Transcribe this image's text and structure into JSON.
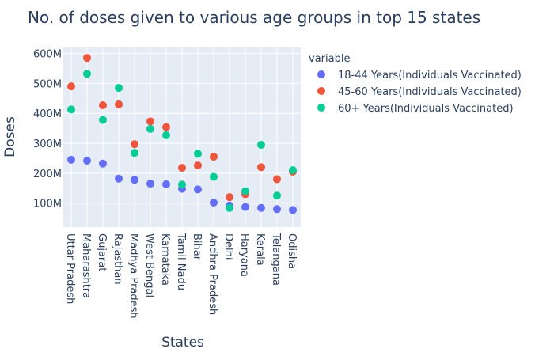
{
  "colors": {
    "plot_bg": "#E5ECF6",
    "grid": "#ffffff",
    "text": "#2a3f5f"
  },
  "chart_data": {
    "type": "scatter",
    "title": "No. of doses given to various age groups in top 15 states",
    "xlabel": "States",
    "ylabel": "Doses",
    "legend_title": "variable",
    "legend_position": "right",
    "grid": true,
    "ylim": [
      20000000,
      620000000
    ],
    "yticks": [
      100000000,
      200000000,
      300000000,
      400000000,
      500000000,
      600000000
    ],
    "ytick_labels": [
      "100M",
      "200M",
      "300M",
      "400M",
      "500M",
      "600M"
    ],
    "categories": [
      "Uttar Pradesh",
      "Maharashtra",
      "Gujarat",
      "Rajasthan",
      "Madhya Pradesh",
      "West Bengal",
      "Karnataka",
      "Tamil Nadu",
      "Bihar",
      "Andhra Pradesh",
      "Delhi",
      "Haryana",
      "Kerala",
      "Telangana",
      "Odisha"
    ],
    "series": [
      {
        "name": "18-44 Years(Individuals Vaccinated)",
        "color": "#636efa",
        "values": [
          245000000,
          242000000,
          232000000,
          182000000,
          178000000,
          165000000,
          163000000,
          148000000,
          146000000,
          102000000,
          92000000,
          87000000,
          84000000,
          80000000,
          77000000
        ]
      },
      {
        "name": "45-60 Years(Individuals Vaccinated)",
        "color": "#EF553B",
        "values": [
          490000000,
          585000000,
          427000000,
          430000000,
          297000000,
          373000000,
          354000000,
          218000000,
          226000000,
          255000000,
          120000000,
          130000000,
          220000000,
          180000000,
          205000000
        ]
      },
      {
        "name": "60+ Years(Individuals Vaccinated)",
        "color": "#00cc96",
        "values": [
          413000000,
          532000000,
          378000000,
          485000000,
          268000000,
          348000000,
          327000000,
          162000000,
          265000000,
          188000000,
          84000000,
          140000000,
          295000000,
          125000000,
          210000000
        ]
      }
    ]
  }
}
